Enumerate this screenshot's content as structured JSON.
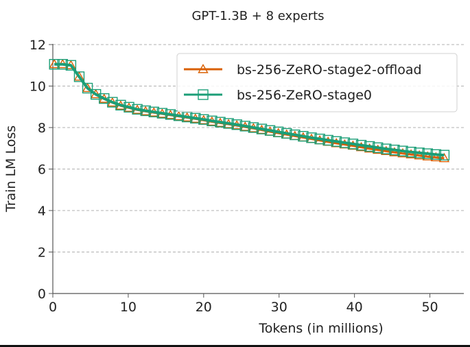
{
  "chart_data": {
    "type": "line",
    "title": "GPT-1.3B + 8 experts",
    "xlabel": "Tokens (in millions)",
    "ylabel": "Train LM Loss",
    "xlim": [
      0,
      54.5
    ],
    "ylim": [
      0,
      12
    ],
    "xticks": [
      0,
      10,
      20,
      30,
      40,
      50
    ],
    "yticks": [
      0,
      2,
      4,
      6,
      8,
      10,
      12
    ],
    "grid": "y-dashed",
    "legend_position": "top-right",
    "series": [
      {
        "name": "bs-256-ZeRO-stage2-offload",
        "color": "#d95f02",
        "marker": "triangle",
        "x": [
          0.2,
          1.3,
          2.4,
          3.5,
          4.6,
          5.7,
          6.8,
          7.9,
          9.0,
          10.1,
          11.2,
          12.3,
          13.4,
          14.5,
          15.6,
          16.7,
          17.8,
          18.9,
          20.0,
          21.1,
          22.2,
          23.3,
          24.4,
          25.5,
          26.6,
          27.7,
          28.8,
          29.9,
          31.0,
          32.1,
          33.2,
          34.3,
          35.4,
          36.5,
          37.6,
          38.7,
          39.8,
          40.9,
          42.0,
          43.1,
          44.2,
          45.3,
          46.4,
          47.5,
          48.6,
          49.7,
          50.8,
          51.9
        ],
        "y": [
          11.05,
          11.05,
          11.0,
          10.45,
          9.9,
          9.6,
          9.38,
          9.2,
          9.05,
          8.95,
          8.85,
          8.78,
          8.72,
          8.66,
          8.6,
          8.54,
          8.48,
          8.42,
          8.35,
          8.28,
          8.22,
          8.16,
          8.1,
          8.03,
          7.96,
          7.88,
          7.8,
          7.73,
          7.66,
          7.59,
          7.52,
          7.45,
          7.38,
          7.31,
          7.24,
          7.18,
          7.12,
          7.05,
          6.98,
          6.92,
          6.86,
          6.8,
          6.75,
          6.7,
          6.65,
          6.6,
          6.56,
          6.52
        ]
      },
      {
        "name": "bs-256-ZeRO-stage0",
        "color": "#1b9e77",
        "marker": "square",
        "x": [
          0.2,
          1.3,
          2.4,
          3.5,
          4.6,
          5.7,
          6.8,
          7.9,
          9.0,
          10.1,
          11.2,
          12.3,
          13.4,
          14.5,
          15.6,
          16.7,
          17.8,
          18.9,
          20.0,
          21.1,
          22.2,
          23.3,
          24.4,
          25.5,
          26.6,
          27.7,
          28.8,
          29.9,
          31.0,
          32.1,
          33.2,
          34.3,
          35.4,
          36.5,
          37.6,
          38.7,
          39.8,
          40.9,
          42.0,
          43.1,
          44.2,
          45.3,
          46.4,
          47.5,
          48.6,
          49.7,
          50.8,
          51.9
        ],
        "y": [
          11.05,
          11.05,
          11.0,
          10.45,
          9.9,
          9.6,
          9.4,
          9.22,
          9.08,
          8.98,
          8.88,
          8.81,
          8.75,
          8.69,
          8.63,
          8.57,
          8.51,
          8.45,
          8.39,
          8.32,
          8.26,
          8.2,
          8.14,
          8.07,
          8.0,
          7.93,
          7.86,
          7.79,
          7.72,
          7.65,
          7.58,
          7.51,
          7.45,
          7.39,
          7.33,
          7.27,
          7.21,
          7.15,
          7.09,
          7.03,
          6.97,
          6.92,
          6.87,
          6.82,
          6.78,
          6.74,
          6.7,
          6.67
        ]
      }
    ]
  }
}
